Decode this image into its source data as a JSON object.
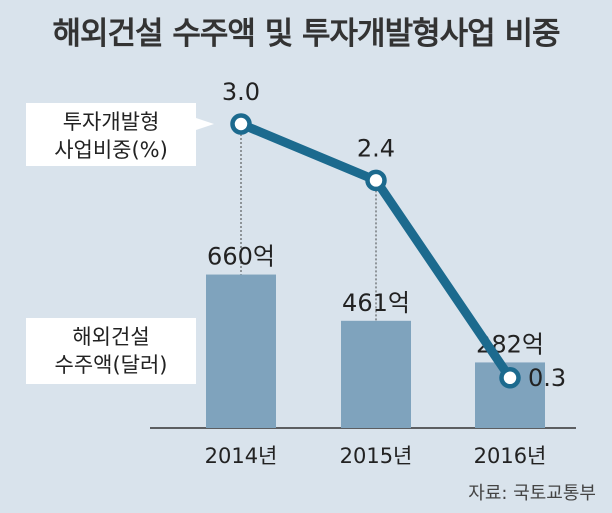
{
  "chart_data": {
    "type": "bar+line",
    "title": "해외건설 수주액 및 투자개발형사업 비중",
    "categories": [
      "2014년",
      "2015년",
      "2016년"
    ],
    "series": [
      {
        "name": "해외건설 수주액(달러)",
        "type": "bar",
        "values": [
          660,
          461,
          282
        ],
        "labels": [
          "660억",
          "461억",
          "282억"
        ]
      },
      {
        "name": "투자개발형 사업비중(%)",
        "type": "line",
        "values": [
          3.0,
          2.4,
          0.3
        ],
        "labels": [
          "3.0",
          "2.4",
          "0.3"
        ]
      }
    ],
    "legend_line": [
      "투자개발형",
      "사업비중(%)"
    ],
    "legend_bar": [
      "해외건설",
      "수주액(달러)"
    ],
    "source": "자료: 국토교통부",
    "colors": {
      "bar": "#7fa3bd",
      "line": "#1c6a8e",
      "background": "#d9e3ec"
    }
  }
}
